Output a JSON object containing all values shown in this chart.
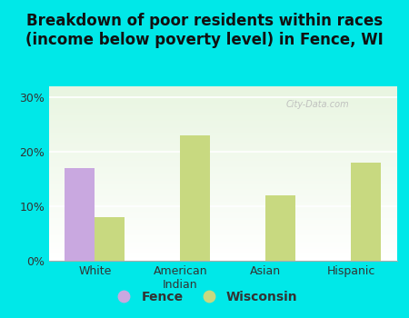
{
  "title": "Breakdown of poor residents within races\n(income below poverty level) in Fence, WI",
  "categories": [
    "White",
    "American\nIndian",
    "Asian",
    "Hispanic"
  ],
  "fence_values": [
    17.0,
    0,
    0,
    0
  ],
  "wisconsin_values": [
    8.0,
    23.0,
    12.0,
    18.0
  ],
  "fence_color": "#c9a8e0",
  "wisconsin_color": "#c8d980",
  "background_outer": "#00e8e8",
  "ylim": [
    0,
    32
  ],
  "yticks": [
    0,
    10,
    20,
    30
  ],
  "ytick_labels": [
    "0%",
    "10%",
    "20%",
    "30%"
  ],
  "bar_width": 0.35,
  "legend_fence": "Fence",
  "legend_wisconsin": "Wisconsin",
  "title_fontsize": 12,
  "watermark": "City-Data.com"
}
